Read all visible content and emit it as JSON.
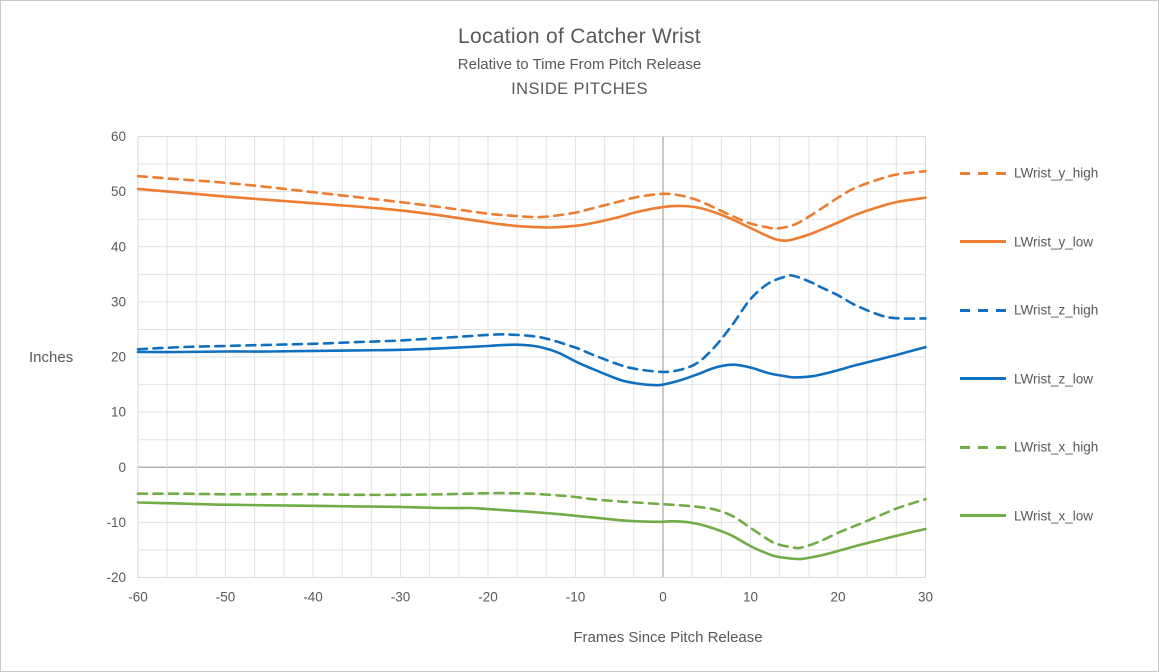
{
  "chart_data": {
    "type": "line",
    "title": "Location of Catcher Wrist",
    "subtitle": "Relative to Time From Pitch Release",
    "subtitle2": "INSIDE PITCHES",
    "xlabel": "Frames Since Pitch Release",
    "ylabel": "Inches",
    "xlim": [
      -60,
      30
    ],
    "ylim": [
      -20,
      60
    ],
    "x_major_ticks": [
      -60,
      -50,
      -40,
      -30,
      -20,
      -10,
      0,
      10,
      20,
      30
    ],
    "y_major_ticks": [
      60,
      50,
      40,
      30,
      20,
      10,
      0,
      -10,
      -20
    ],
    "x_minor_divisions_per_major": 3,
    "y_minor_unit": 5,
    "grid": true,
    "zero_lines_darker": true,
    "legend_position": "right",
    "colors": {
      "orange": "#ED7D31",
      "blue": "#0F70C0",
      "green": "#70AD47",
      "text": "#595959",
      "gridline": "#e2e2e2",
      "zero_line": "#b3b3b3",
      "plot_border": "#d9d9d9"
    },
    "series": [
      {
        "name": "LWrist_y_high",
        "color": "#ED7D31",
        "dashed": true,
        "points": [
          [
            -60,
            52.8
          ],
          [
            -55,
            52.2
          ],
          [
            -50,
            51.6
          ],
          [
            -45,
            50.8
          ],
          [
            -40,
            49.9
          ],
          [
            -35,
            49.0
          ],
          [
            -30,
            48.1
          ],
          [
            -25,
            47.1
          ],
          [
            -20,
            46.0
          ],
          [
            -17,
            45.6
          ],
          [
            -15,
            45.4
          ],
          [
            -13,
            45.5
          ],
          [
            -10,
            46.2
          ],
          [
            -8,
            47.0
          ],
          [
            -5,
            48.2
          ],
          [
            -3,
            49.0
          ],
          [
            0,
            49.6
          ],
          [
            2,
            49.3
          ],
          [
            4,
            48.4
          ],
          [
            6,
            47.0
          ],
          [
            8,
            45.5
          ],
          [
            10,
            44.2
          ],
          [
            12,
            43.5
          ],
          [
            13,
            43.3
          ],
          [
            15,
            44.0
          ],
          [
            17,
            45.8
          ],
          [
            20,
            48.9
          ],
          [
            22,
            50.7
          ],
          [
            25,
            52.4
          ],
          [
            27,
            53.2
          ],
          [
            30,
            53.7
          ]
        ]
      },
      {
        "name": "LWrist_y_low",
        "color": "#ED7D31",
        "dashed": false,
        "points": [
          [
            -60,
            50.5
          ],
          [
            -55,
            49.8
          ],
          [
            -50,
            49.1
          ],
          [
            -45,
            48.5
          ],
          [
            -40,
            47.9
          ],
          [
            -35,
            47.3
          ],
          [
            -30,
            46.6
          ],
          [
            -25,
            45.6
          ],
          [
            -20,
            44.4
          ],
          [
            -17,
            43.8
          ],
          [
            -15,
            43.6
          ],
          [
            -13,
            43.5
          ],
          [
            -10,
            43.8
          ],
          [
            -8,
            44.3
          ],
          [
            -5,
            45.4
          ],
          [
            -3,
            46.3
          ],
          [
            0,
            47.2
          ],
          [
            2,
            47.4
          ],
          [
            4,
            47.1
          ],
          [
            6,
            46.2
          ],
          [
            8,
            44.9
          ],
          [
            10,
            43.4
          ],
          [
            12,
            41.9
          ],
          [
            13,
            41.3
          ],
          [
            14,
            41.1
          ],
          [
            15,
            41.4
          ],
          [
            17,
            42.4
          ],
          [
            20,
            44.4
          ],
          [
            22,
            45.8
          ],
          [
            25,
            47.4
          ],
          [
            27,
            48.2
          ],
          [
            30,
            48.9
          ]
        ]
      },
      {
        "name": "LWrist_z_high",
        "color": "#0F70C0",
        "dashed": true,
        "points": [
          [
            -60,
            21.4
          ],
          [
            -55,
            21.8
          ],
          [
            -50,
            22.0
          ],
          [
            -45,
            22.2
          ],
          [
            -40,
            22.4
          ],
          [
            -35,
            22.7
          ],
          [
            -30,
            23.0
          ],
          [
            -25,
            23.5
          ],
          [
            -20,
            24.0
          ],
          [
            -18,
            24.1
          ],
          [
            -15,
            23.8
          ],
          [
            -13,
            23.2
          ],
          [
            -10,
            21.7
          ],
          [
            -8,
            20.4
          ],
          [
            -5,
            18.6
          ],
          [
            -3,
            17.8
          ],
          [
            0,
            17.3
          ],
          [
            2,
            17.7
          ],
          [
            4,
            19.0
          ],
          [
            6,
            22.0
          ],
          [
            8,
            26.0
          ],
          [
            10,
            30.5
          ],
          [
            12,
            33.3
          ],
          [
            14,
            34.6
          ],
          [
            15,
            34.7
          ],
          [
            17,
            33.5
          ],
          [
            18,
            32.7
          ],
          [
            20,
            31.2
          ],
          [
            22,
            29.4
          ],
          [
            25,
            27.5
          ],
          [
            27,
            27.0
          ],
          [
            30,
            27.0
          ]
        ]
      },
      {
        "name": "LWrist_z_low",
        "color": "#0F70C0",
        "dashed": false,
        "points": [
          [
            -60,
            20.9
          ],
          [
            -55,
            20.9
          ],
          [
            -50,
            21.0
          ],
          [
            -45,
            21.0
          ],
          [
            -40,
            21.1
          ],
          [
            -35,
            21.2
          ],
          [
            -30,
            21.3
          ],
          [
            -25,
            21.6
          ],
          [
            -20,
            22.0
          ],
          [
            -18,
            22.2
          ],
          [
            -16,
            22.2
          ],
          [
            -14,
            21.8
          ],
          [
            -12,
            20.8
          ],
          [
            -10,
            19.2
          ],
          [
            -8,
            17.8
          ],
          [
            -5,
            15.9
          ],
          [
            -3,
            15.2
          ],
          [
            -1,
            14.9
          ],
          [
            0,
            15.0
          ],
          [
            2,
            15.8
          ],
          [
            4,
            16.9
          ],
          [
            6,
            18.1
          ],
          [
            8,
            18.6
          ],
          [
            10,
            18.1
          ],
          [
            12,
            17.1
          ],
          [
            14,
            16.5
          ],
          [
            15,
            16.3
          ],
          [
            17,
            16.5
          ],
          [
            18,
            16.8
          ],
          [
            20,
            17.6
          ],
          [
            22,
            18.5
          ],
          [
            25,
            19.7
          ],
          [
            27,
            20.5
          ],
          [
            30,
            21.8
          ]
        ]
      },
      {
        "name": "LWrist_x_high",
        "color": "#70AD47",
        "dashed": true,
        "points": [
          [
            -60,
            -4.8
          ],
          [
            -55,
            -4.8
          ],
          [
            -50,
            -4.9
          ],
          [
            -45,
            -4.9
          ],
          [
            -40,
            -4.9
          ],
          [
            -35,
            -5.0
          ],
          [
            -30,
            -5.0
          ],
          [
            -25,
            -4.9
          ],
          [
            -20,
            -4.7
          ],
          [
            -17,
            -4.7
          ],
          [
            -15,
            -4.8
          ],
          [
            -12,
            -5.1
          ],
          [
            -10,
            -5.4
          ],
          [
            -8,
            -5.8
          ],
          [
            -5,
            -6.2
          ],
          [
            -3,
            -6.4
          ],
          [
            0,
            -6.7
          ],
          [
            2,
            -6.9
          ],
          [
            4,
            -7.2
          ],
          [
            6,
            -7.7
          ],
          [
            8,
            -8.9
          ],
          [
            10,
            -11.0
          ],
          [
            12,
            -13.1
          ],
          [
            13,
            -13.9
          ],
          [
            15,
            -14.6
          ],
          [
            16,
            -14.5
          ],
          [
            18,
            -13.4
          ],
          [
            20,
            -11.9
          ],
          [
            22,
            -10.6
          ],
          [
            25,
            -8.6
          ],
          [
            27,
            -7.3
          ],
          [
            30,
            -5.8
          ]
        ]
      },
      {
        "name": "LWrist_x_low",
        "color": "#70AD47",
        "dashed": false,
        "points": [
          [
            -60,
            -6.4
          ],
          [
            -55,
            -6.6
          ],
          [
            -50,
            -6.8
          ],
          [
            -45,
            -6.9
          ],
          [
            -40,
            -7.0
          ],
          [
            -35,
            -7.1
          ],
          [
            -30,
            -7.2
          ],
          [
            -25,
            -7.4
          ],
          [
            -22,
            -7.4
          ],
          [
            -20,
            -7.6
          ],
          [
            -17,
            -7.9
          ],
          [
            -15,
            -8.1
          ],
          [
            -12,
            -8.5
          ],
          [
            -10,
            -8.8
          ],
          [
            -8,
            -9.1
          ],
          [
            -5,
            -9.6
          ],
          [
            -3,
            -9.8
          ],
          [
            -1,
            -9.9
          ],
          [
            0,
            -9.9
          ],
          [
            1,
            -9.8
          ],
          [
            3,
            -10.0
          ],
          [
            5,
            -10.7
          ],
          [
            7,
            -11.8
          ],
          [
            8,
            -12.5
          ],
          [
            10,
            -14.3
          ],
          [
            12,
            -15.7
          ],
          [
            13,
            -16.2
          ],
          [
            15,
            -16.6
          ],
          [
            16,
            -16.6
          ],
          [
            18,
            -16.0
          ],
          [
            20,
            -15.2
          ],
          [
            22,
            -14.3
          ],
          [
            25,
            -13.1
          ],
          [
            27,
            -12.3
          ],
          [
            30,
            -11.2
          ]
        ]
      }
    ]
  }
}
